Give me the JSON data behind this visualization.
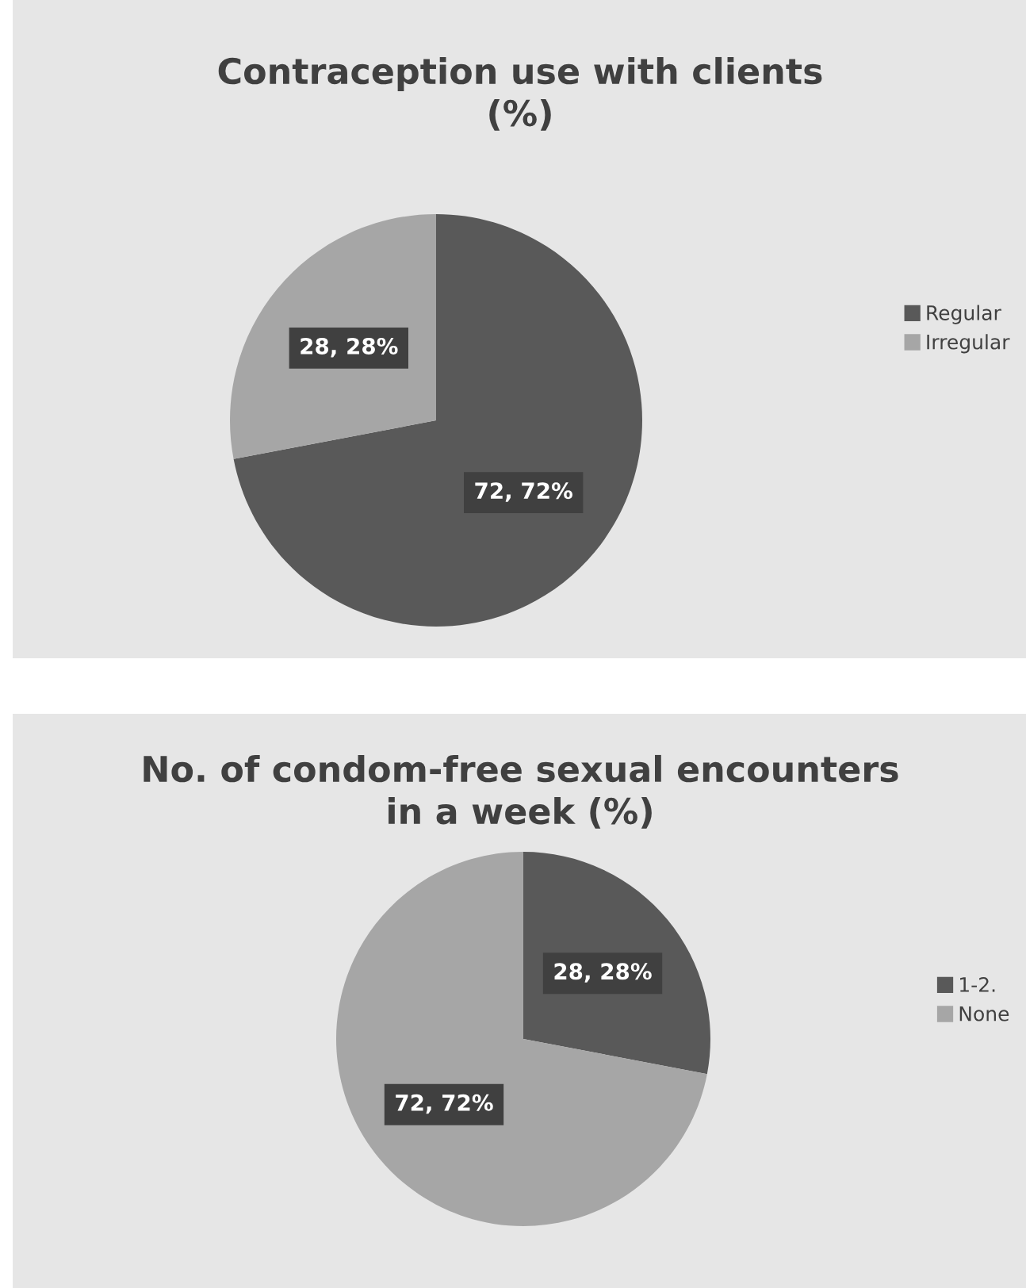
{
  "chart_data": [
    {
      "type": "pie",
      "title": "Contraception use with clients\n(%)",
      "categories": [
        "Regular",
        "Irregular"
      ],
      "values": [
        72,
        28
      ],
      "colors": [
        "#595959",
        "#a6a6a6"
      ],
      "value_labels": [
        "72, 72%",
        "28, 28%"
      ],
      "legend": "right"
    },
    {
      "type": "pie",
      "title": "No. of condom-free sexual encounters\nin a week (%)",
      "categories": [
        "1-2.",
        "None"
      ],
      "values": [
        28,
        72
      ],
      "colors": [
        "#595959",
        "#a6a6a6"
      ],
      "value_labels": [
        "28, 28%",
        "72, 72%"
      ],
      "legend": "right"
    }
  ]
}
